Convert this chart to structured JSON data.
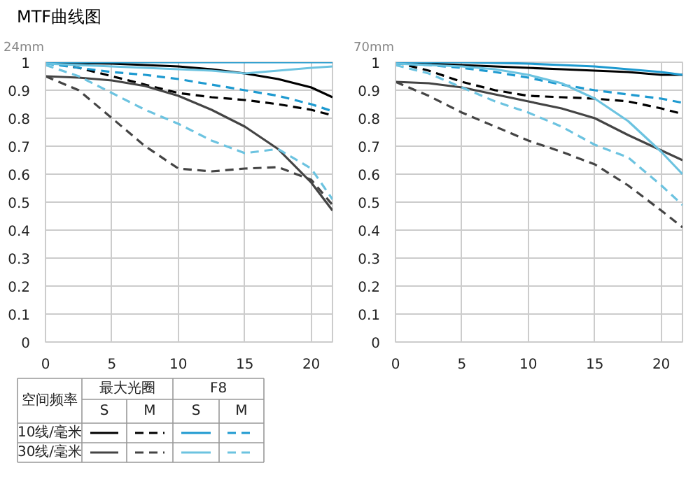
{
  "chart_data": [
    {
      "type": "line",
      "title": "MTF曲线图",
      "subtitle": "24mm",
      "xlim": [
        0,
        21.6
      ],
      "ylim": [
        0,
        1
      ],
      "xticks": [
        0,
        5,
        10,
        15,
        20
      ],
      "yticks": [
        0,
        0.1,
        0.2,
        0.3,
        0.4,
        0.5,
        0.6,
        0.7,
        0.8,
        0.9,
        1
      ],
      "grid": true,
      "x": [
        0,
        2.5,
        5,
        7.5,
        10,
        12.5,
        15,
        17.5,
        20,
        21.6
      ],
      "annotations": [
        "空间频率",
        "最大光圈",
        "F8",
        "S",
        "M",
        "S",
        "M",
        "10线/毫米",
        "30线/毫米"
      ],
      "series": [
        {
          "color": "#000000",
          "line_style": "solid",
          "values": [
            1,
            0.997,
            0.995,
            0.99,
            0.985,
            0.975,
            0.96,
            0.94,
            0.91,
            0.875
          ]
        },
        {
          "color": "#000000",
          "line_style": "dashed",
          "values": [
            1,
            0.98,
            0.95,
            0.92,
            0.89,
            0.875,
            0.865,
            0.85,
            0.83,
            0.81
          ]
        },
        {
          "color": "#1e9ad0",
          "line_style": "solid",
          "values": [
            1,
            1,
            1,
            1,
            1,
            1,
            1,
            1,
            1,
            1
          ]
        },
        {
          "color": "#1e9ad0",
          "line_style": "dashed",
          "values": [
            0.995,
            0.98,
            0.965,
            0.955,
            0.94,
            0.92,
            0.9,
            0.88,
            0.85,
            0.825
          ]
        },
        {
          "color": "#444444",
          "line_style": "solid",
          "values": [
            0.95,
            0.945,
            0.935,
            0.915,
            0.88,
            0.83,
            0.77,
            0.69,
            0.57,
            0.47
          ]
        },
        {
          "color": "#444444",
          "line_style": "dashed",
          "values": [
            0.95,
            0.9,
            0.8,
            0.7,
            0.62,
            0.61,
            0.62,
            0.625,
            0.58,
            0.49
          ]
        },
        {
          "color": "#6cc3e0",
          "line_style": "solid",
          "values": [
            0.995,
            0.99,
            0.985,
            0.98,
            0.975,
            0.97,
            0.96,
            0.97,
            0.98,
            0.985
          ]
        },
        {
          "color": "#6cc3e0",
          "line_style": "dashed",
          "values": [
            0.99,
            0.95,
            0.89,
            0.83,
            0.78,
            0.72,
            0.675,
            0.69,
            0.62,
            0.51
          ]
        }
      ]
    },
    {
      "type": "line",
      "subtitle": "70mm",
      "xlim": [
        0,
        21.6
      ],
      "ylim": [
        0,
        1
      ],
      "xticks": [
        0,
        5,
        10,
        15,
        20
      ],
      "yticks": [
        0,
        0.1,
        0.2,
        0.3,
        0.4,
        0.5,
        0.6,
        0.7,
        0.8,
        0.9,
        1
      ],
      "grid": true,
      "x": [
        0,
        2.5,
        5,
        7.5,
        10,
        12.5,
        15,
        17.5,
        20,
        21.6
      ],
      "series": [
        {
          "color": "#000000",
          "line_style": "solid",
          "values": [
            0.995,
            0.995,
            0.99,
            0.985,
            0.98,
            0.975,
            0.97,
            0.965,
            0.955,
            0.955
          ]
        },
        {
          "color": "#000000",
          "line_style": "dashed",
          "values": [
            1,
            0.97,
            0.93,
            0.9,
            0.88,
            0.875,
            0.87,
            0.86,
            0.835,
            0.815
          ]
        },
        {
          "color": "#1e9ad0",
          "line_style": "solid",
          "values": [
            1,
            1,
            1,
            0.998,
            0.995,
            0.99,
            0.985,
            0.975,
            0.965,
            0.955
          ]
        },
        {
          "color": "#1e9ad0",
          "line_style": "dashed",
          "values": [
            0.995,
            0.99,
            0.98,
            0.965,
            0.945,
            0.92,
            0.9,
            0.885,
            0.87,
            0.855
          ]
        },
        {
          "color": "#444444",
          "line_style": "solid",
          "values": [
            0.93,
            0.925,
            0.91,
            0.885,
            0.86,
            0.835,
            0.8,
            0.74,
            0.685,
            0.65
          ]
        },
        {
          "color": "#444444",
          "line_style": "dashed",
          "values": [
            0.93,
            0.88,
            0.82,
            0.77,
            0.72,
            0.68,
            0.635,
            0.56,
            0.47,
            0.41
          ]
        },
        {
          "color": "#6cc3e0",
          "line_style": "solid",
          "values": [
            0.995,
            0.99,
            0.985,
            0.975,
            0.955,
            0.925,
            0.87,
            0.79,
            0.68,
            0.6
          ]
        },
        {
          "color": "#6cc3e0",
          "line_style": "dashed",
          "values": [
            0.99,
            0.96,
            0.91,
            0.86,
            0.82,
            0.77,
            0.705,
            0.66,
            0.56,
            0.49
          ]
        }
      ]
    }
  ]
}
